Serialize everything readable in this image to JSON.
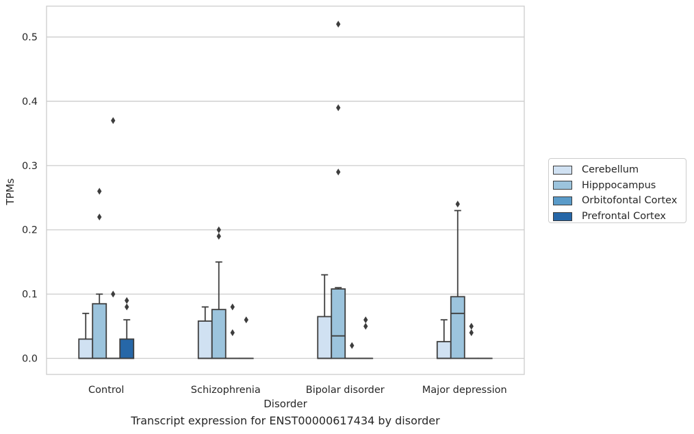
{
  "chart_data": {
    "type": "box",
    "xlabel": "Disorder",
    "ylabel": "TPMs",
    "ylim": [
      -0.025,
      0.548
    ],
    "yticks": [
      0.0,
      0.1,
      0.2,
      0.3,
      0.4,
      0.5
    ],
    "ytick_labels": [
      "0.0",
      "0.1",
      "0.2",
      "0.3",
      "0.4",
      "0.5"
    ],
    "grid": "horizontal",
    "legend_position": "right",
    "categories": [
      "Control",
      "Schizophrenia",
      "Bipolar disorder",
      "Major depression"
    ],
    "series": [
      {
        "name": "Cerebellum",
        "color": "#d0e1f2",
        "boxes": [
          {
            "q1": 0.0,
            "median": 0.0,
            "q3": 0.03,
            "whisker_low": 0.0,
            "whisker_high": 0.07,
            "outliers": []
          },
          {
            "q1": 0.0,
            "median": 0.0,
            "q3": 0.058,
            "whisker_low": 0.0,
            "whisker_high": 0.08,
            "outliers": []
          },
          {
            "q1": 0.0,
            "median": 0.0,
            "q3": 0.065,
            "whisker_low": 0.0,
            "whisker_high": 0.13,
            "outliers": []
          },
          {
            "q1": 0.0,
            "median": 0.0,
            "q3": 0.026,
            "whisker_low": 0.0,
            "whisker_high": 0.06,
            "outliers": []
          }
        ]
      },
      {
        "name": "Hipppocampus",
        "color": "#9cc4dd",
        "boxes": [
          {
            "q1": 0.0,
            "median": 0.0,
            "q3": 0.085,
            "whisker_low": 0.0,
            "whisker_high": 0.1,
            "outliers": [
              0.26,
              0.22
            ]
          },
          {
            "q1": 0.0,
            "median": 0.0,
            "q3": 0.076,
            "whisker_low": 0.0,
            "whisker_high": 0.15,
            "outliers": [
              0.2,
              0.19
            ]
          },
          {
            "q1": 0.0,
            "median": 0.035,
            "q3": 0.108,
            "whisker_low": 0.0,
            "whisker_high": 0.11,
            "outliers": [
              0.52,
              0.39,
              0.29
            ]
          },
          {
            "q1": 0.0,
            "median": 0.07,
            "q3": 0.096,
            "whisker_low": 0.0,
            "whisker_high": 0.23,
            "outliers": [
              0.24
            ]
          }
        ]
      },
      {
        "name": "Orbitofontal Cortex",
        "color": "#5a9bc9",
        "boxes": [
          {
            "q1": 0.0,
            "median": 0.0,
            "q3": 0.0,
            "whisker_low": 0.0,
            "whisker_high": 0.0,
            "outliers": [
              0.37,
              0.1
            ]
          },
          {
            "q1": 0.0,
            "median": 0.0,
            "q3": 0.0,
            "whisker_low": 0.0,
            "whisker_high": 0.0,
            "outliers": [
              0.08,
              0.04
            ]
          },
          {
            "q1": 0.0,
            "median": 0.0,
            "q3": 0.0,
            "whisker_low": 0.0,
            "whisker_high": 0.0,
            "outliers": [
              0.02
            ]
          },
          {
            "q1": 0.0,
            "median": 0.0,
            "q3": 0.0,
            "whisker_low": 0.0,
            "whisker_high": 0.0,
            "outliers": [
              0.05,
              0.04
            ]
          }
        ]
      },
      {
        "name": "Prefrontal Cortex",
        "color": "#2667a8",
        "boxes": [
          {
            "q1": 0.0,
            "median": 0.0,
            "q3": 0.03,
            "whisker_low": 0.0,
            "whisker_high": 0.06,
            "outliers": [
              0.09,
              0.08
            ]
          },
          {
            "q1": 0.0,
            "median": 0.0,
            "q3": 0.0,
            "whisker_low": 0.0,
            "whisker_high": 0.0,
            "outliers": [
              0.06
            ]
          },
          {
            "q1": 0.0,
            "median": 0.0,
            "q3": 0.0,
            "whisker_low": 0.0,
            "whisker_high": 0.0,
            "outliers": [
              0.06,
              0.05
            ]
          },
          {
            "q1": 0.0,
            "median": 0.0,
            "q3": 0.0,
            "whisker_low": 0.0,
            "whisker_high": 0.0,
            "outliers": []
          }
        ]
      }
    ],
    "caption": "Transcript expression for ENST00000617434 by disorder"
  }
}
